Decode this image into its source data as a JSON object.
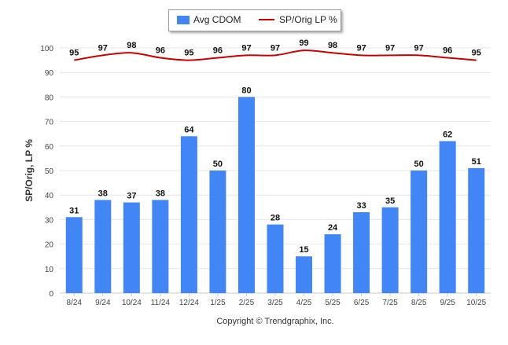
{
  "chart_data": {
    "type": "bar+line",
    "categories": [
      "8/24",
      "9/24",
      "10/24",
      "11/24",
      "12/24",
      "1/25",
      "2/25",
      "3/25",
      "4/25",
      "5/25",
      "6/25",
      "7/25",
      "8/25",
      "9/25",
      "10/25"
    ],
    "series": [
      {
        "name": "Avg CDOM",
        "type": "bar",
        "color": "#4285f4",
        "values": [
          31,
          38,
          37,
          38,
          64,
          50,
          80,
          28,
          15,
          24,
          33,
          35,
          50,
          62,
          51
        ]
      },
      {
        "name": "SP/Orig LP %",
        "type": "line",
        "color": "#cc0000",
        "values": [
          95,
          97,
          98,
          96,
          95,
          96,
          97,
          97,
          99,
          98,
          97,
          97,
          97,
          96,
          95
        ]
      }
    ],
    "ylabel": "SP/Orig, LP %",
    "ylim": [
      0,
      100
    ],
    "yticks": [
      0,
      10,
      20,
      30,
      40,
      50,
      60,
      70,
      80,
      90,
      100
    ],
    "grid": true,
    "legend_position": "top-center"
  },
  "footer": {
    "copyright": "Copyright © Trendgraphix, Inc."
  }
}
